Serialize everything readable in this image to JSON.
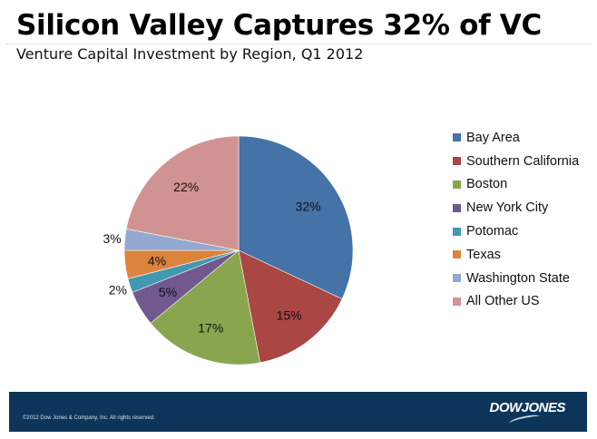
{
  "header": {
    "title": "Silicon Valley Captures 32% of VC",
    "subtitle": "Venture Capital Investment by Region, Q1 2012"
  },
  "footer": {
    "copyright": "©2012 Dow Jones & Company, Inc. All rights reserved.",
    "logo": "DOWJONES"
  },
  "chart_data": {
    "type": "pie",
    "title": "Venture Capital Investment by Region, Q1 2012",
    "start_angle": "12 o'clock, clockwise",
    "legend_position": "right",
    "categories": [
      "Bay Area",
      "Southern California",
      "Boston",
      "New York City",
      "Potomac",
      "Texas",
      "Washington State",
      "All Other US"
    ],
    "values": [
      32,
      15,
      17,
      5,
      2,
      4,
      3,
      22
    ],
    "labels": [
      "32%",
      "15%",
      "17%",
      "5%",
      "2%",
      "4%",
      "3%",
      "22%"
    ],
    "label_outside": [
      false,
      false,
      false,
      false,
      true,
      false,
      true,
      false
    ],
    "colors": [
      "#4572a7",
      "#aa4643",
      "#89a54e",
      "#71588f",
      "#4198af",
      "#db843d",
      "#93a9cf",
      "#d19392"
    ]
  }
}
